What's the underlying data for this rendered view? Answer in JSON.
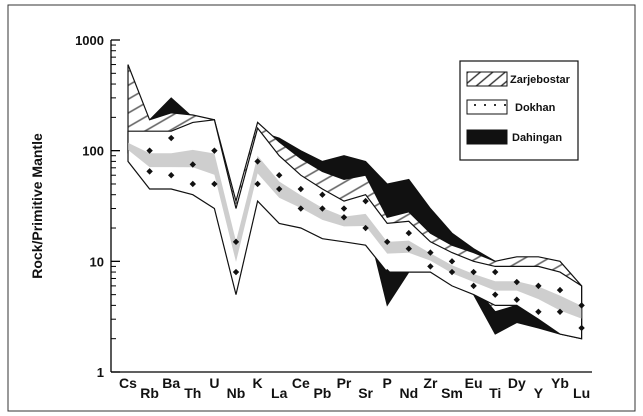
{
  "chart_data": {
    "type": "area",
    "title": "",
    "xlabel": "",
    "ylabel": "Rock/Primitive Mantle",
    "yscale": "log",
    "ylim": [
      1,
      1000
    ],
    "yticks": [
      {
        "value": 1,
        "label": "1"
      },
      {
        "value": 10,
        "label": "10"
      },
      {
        "value": 100,
        "label": "100"
      },
      {
        "value": 1000,
        "label": "1000"
      }
    ],
    "categories": [
      "Cs",
      "Rb",
      "Ba",
      "Th",
      "U",
      "Nb",
      "K",
      "La",
      "Ce",
      "Pb",
      "Pr",
      "Sr",
      "P",
      "Nd",
      "Zr",
      "Sm",
      "Eu",
      "Ti",
      "Dy",
      "Y",
      "Yb",
      "Lu"
    ],
    "legend_position": "top-right",
    "grid": false,
    "series": [
      {
        "name": "Zarjebostar",
        "pattern": "diagonal-hatch",
        "upper": [
          600,
          190,
          220,
          210,
          190,
          35,
          180,
          120,
          85,
          65,
          55,
          60,
          25,
          28,
          18,
          14,
          12,
          10,
          11,
          11,
          10,
          6
        ],
        "lower": [
          95,
          55,
          55,
          45,
          55,
          8,
          45,
          25,
          25,
          20,
          20,
          25,
          10,
          10,
          10,
          7,
          6,
          3.5,
          4,
          3.5,
          3,
          2.5
        ]
      },
      {
        "name": "Dokhan",
        "pattern": "dotted-white",
        "upper": [
          150,
          150,
          150,
          180,
          190,
          30,
          160,
          90,
          60,
          45,
          35,
          40,
          22,
          23,
          15,
          12,
          10,
          9,
          9,
          9,
          8,
          6
        ],
        "lower": [
          80,
          45,
          45,
          40,
          30,
          5,
          35,
          22,
          20,
          16,
          15,
          14,
          8,
          8,
          8,
          6,
          5,
          4,
          4,
          3,
          2.2,
          2
        ],
        "points": [
          {
            "x": "Rb",
            "y": 100
          },
          {
            "x": "Rb",
            "y": 65
          },
          {
            "x": "Ba",
            "y": 130
          },
          {
            "x": "Ba",
            "y": 60
          },
          {
            "x": "Th",
            "y": 75
          },
          {
            "x": "Th",
            "y": 50
          },
          {
            "x": "U",
            "y": 100
          },
          {
            "x": "U",
            "y": 50
          },
          {
            "x": "Nb",
            "y": 15
          },
          {
            "x": "Nb",
            "y": 8
          },
          {
            "x": "K",
            "y": 80
          },
          {
            "x": "K",
            "y": 50
          },
          {
            "x": "La",
            "y": 60
          },
          {
            "x": "La",
            "y": 45
          },
          {
            "x": "Ce",
            "y": 45
          },
          {
            "x": "Ce",
            "y": 30
          },
          {
            "x": "Pb",
            "y": 40
          },
          {
            "x": "Pb",
            "y": 30
          },
          {
            "x": "Pr",
            "y": 30
          },
          {
            "x": "Pr",
            "y": 25
          },
          {
            "x": "Sr",
            "y": 35
          },
          {
            "x": "Sr",
            "y": 20
          },
          {
            "x": "P",
            "y": 15
          },
          {
            "x": "P",
            "y": 8
          },
          {
            "x": "Nd",
            "y": 18
          },
          {
            "x": "Nd",
            "y": 13
          },
          {
            "x": "Zr",
            "y": 12
          },
          {
            "x": "Zr",
            "y": 9
          },
          {
            "x": "Sm",
            "y": 10
          },
          {
            "x": "Sm",
            "y": 8
          },
          {
            "x": "Eu",
            "y": 8
          },
          {
            "x": "Eu",
            "y": 6
          },
          {
            "x": "Ti",
            "y": 8
          },
          {
            "x": "Ti",
            "y": 5
          },
          {
            "x": "Dy",
            "y": 6.5
          },
          {
            "x": "Dy",
            "y": 4.5
          },
          {
            "x": "Y",
            "y": 6
          },
          {
            "x": "Y",
            "y": 3.5
          },
          {
            "x": "Yb",
            "y": 5.5
          },
          {
            "x": "Yb",
            "y": 3.5
          },
          {
            "x": "Lu",
            "y": 4
          },
          {
            "x": "Lu",
            "y": 2.5
          }
        ]
      },
      {
        "name": "Dahingan",
        "pattern": "solid-black",
        "upper": [
          null,
          190,
          300,
          200,
          null,
          35,
          150,
          130,
          100,
          80,
          90,
          80,
          50,
          55,
          30,
          18,
          13,
          10,
          6,
          5,
          5,
          4
        ],
        "lower": [
          null,
          120,
          150,
          130,
          null,
          8,
          70,
          60,
          50,
          35,
          30,
          25,
          4,
          8,
          9,
          7,
          5,
          2.2,
          2.8,
          2.5,
          2.2,
          2
        ]
      }
    ]
  }
}
